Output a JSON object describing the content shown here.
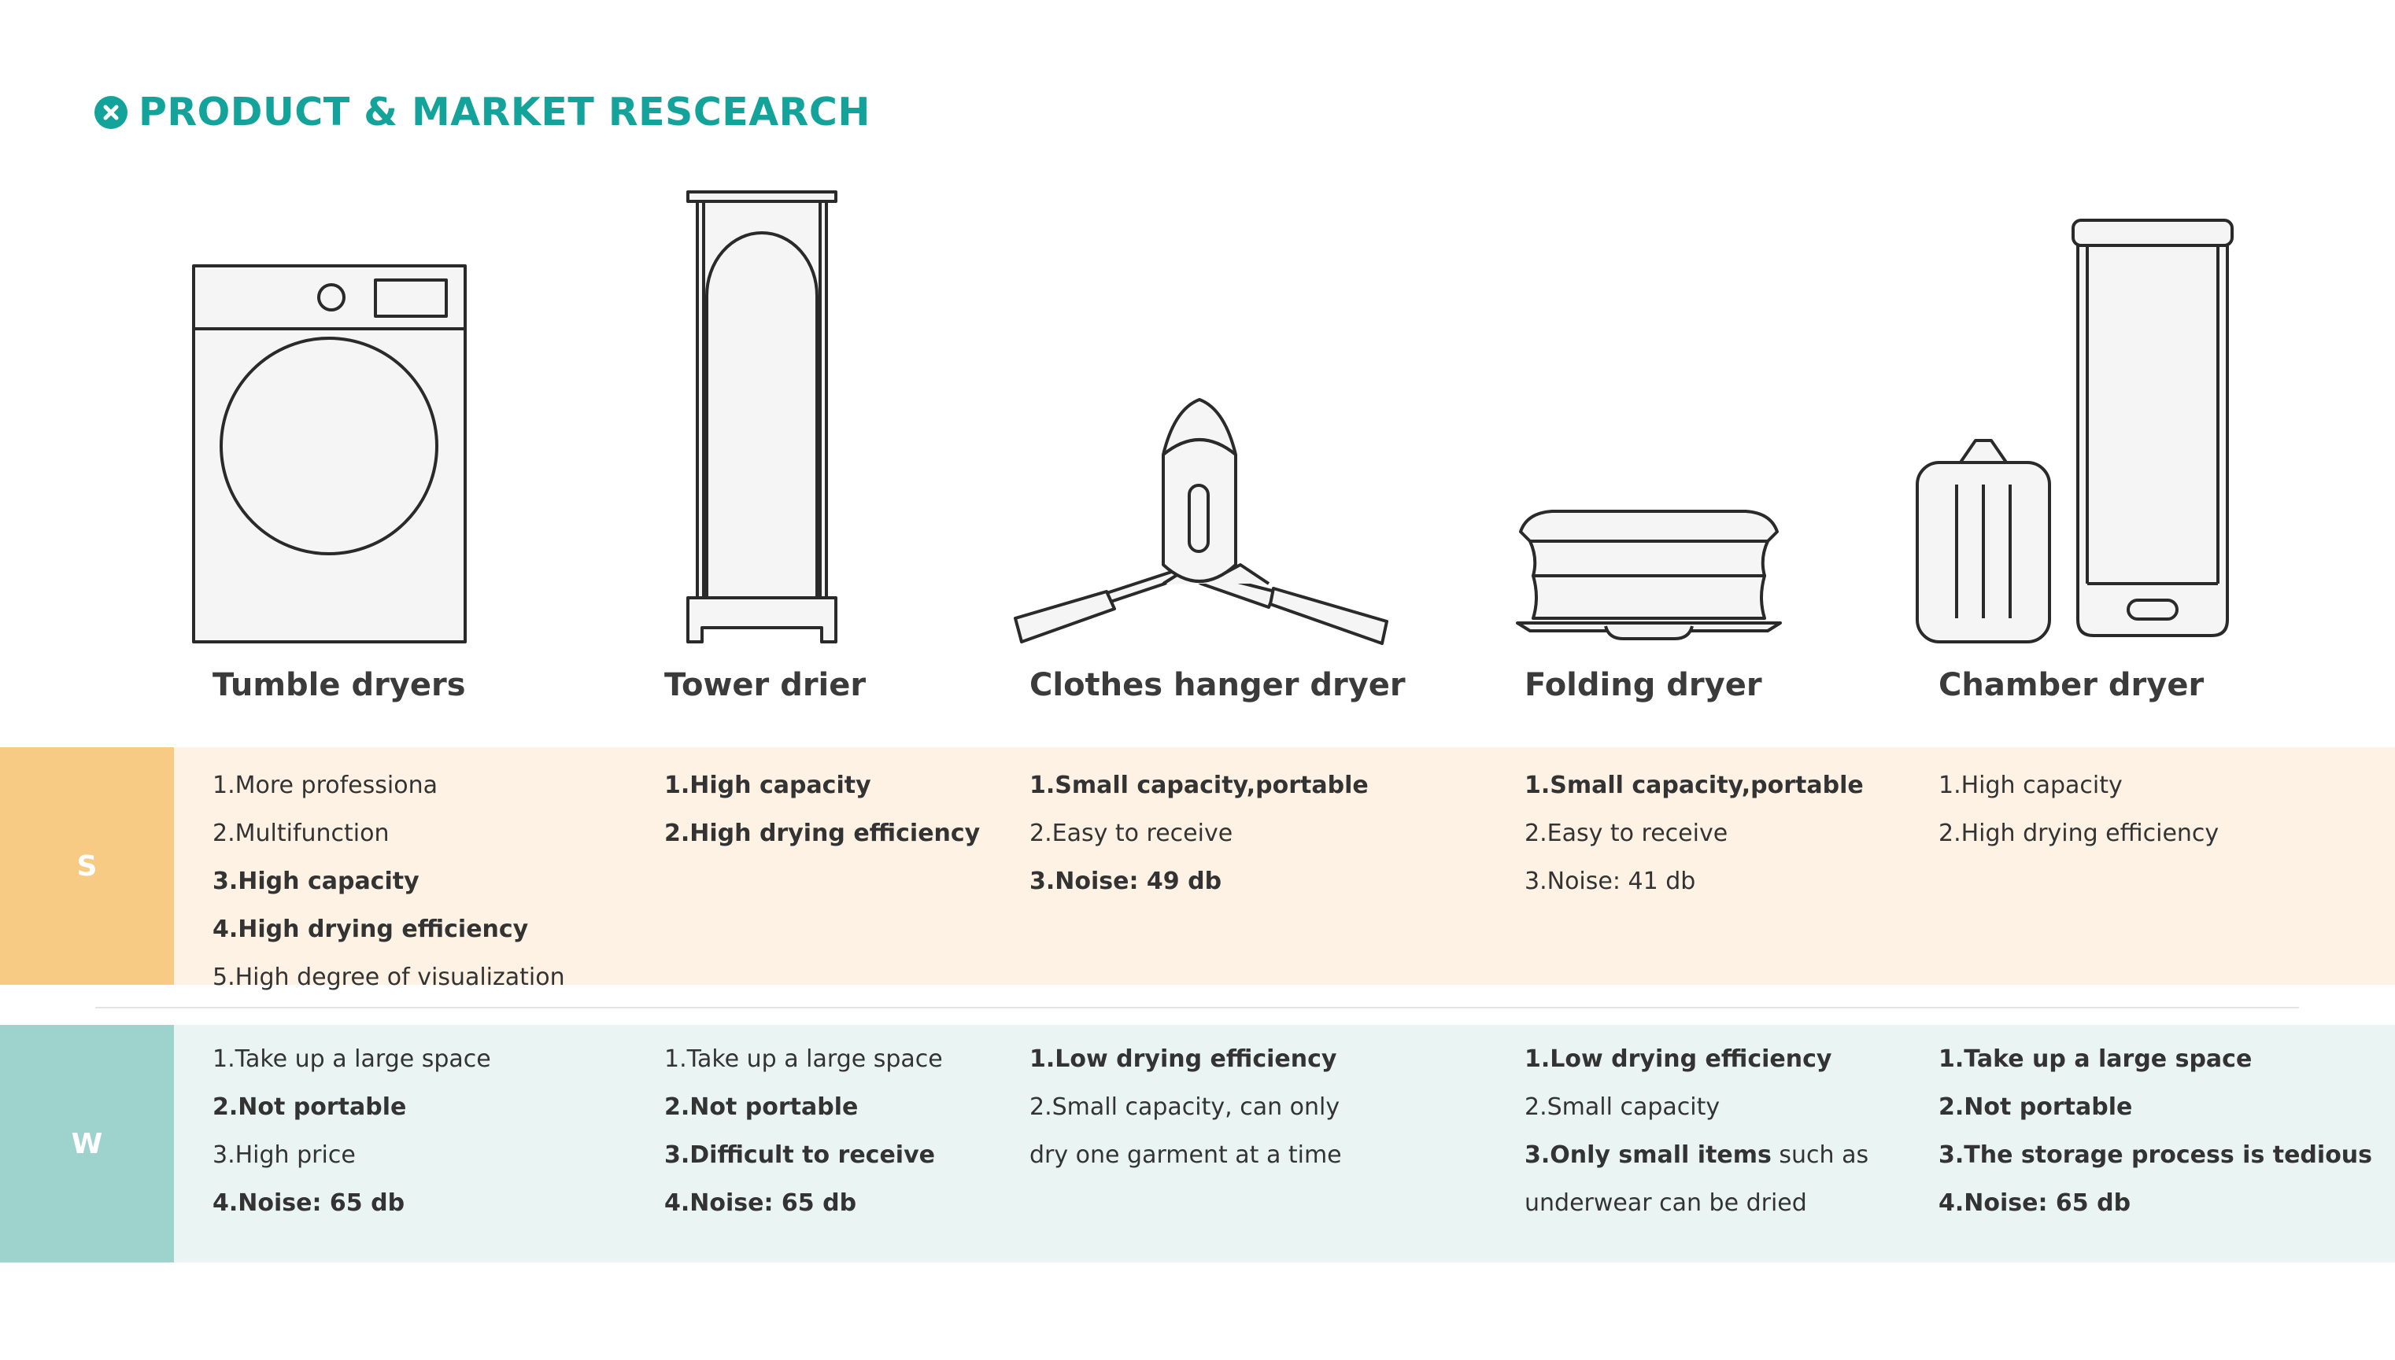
{
  "title": "PRODUCT & MARKET RESCEARCH",
  "colors": {
    "accent": "#14a39a",
    "s_label": "#f8cb85",
    "s_band": "#fdf2e3",
    "w_label": "#9ed2cd",
    "w_band": "#eaf4f3",
    "line_art": "#2a2a2a",
    "fill_art": "#f5f5f5"
  },
  "products": [
    {
      "name": "Tumble dryers",
      "icon": "tumble-dryer-icon"
    },
    {
      "name": "Tower drier",
      "icon": "tower-drier-icon"
    },
    {
      "name": "Clothes hanger dryer",
      "icon": "clothes-hanger-dryer-icon"
    },
    {
      "name": "Folding dryer",
      "icon": "folding-dryer-icon"
    },
    {
      "name": "Chamber dryer",
      "icon": "chamber-dryer-icon"
    }
  ],
  "strengths": {
    "label": "S",
    "columns": [
      [
        {
          "text": "1.More professiona",
          "bold": false
        },
        {
          "text": "2.Multifunction",
          "bold": false
        },
        {
          "text": "3.High capacity",
          "bold": true
        },
        {
          "text": "4.High drying efficiency",
          "bold": true
        },
        {
          "text": "5.High degree of visualization",
          "bold": false
        }
      ],
      [
        {
          "text": "1.High capacity",
          "bold": true
        },
        {
          "text": "2.High drying efficiency",
          "bold": true
        }
      ],
      [
        {
          "text": "1.Small capacity,portable",
          "bold": true
        },
        {
          "text": "2.Easy to receive",
          "bold": false
        },
        {
          "text": "3.Noise: 49 db",
          "bold": true
        }
      ],
      [
        {
          "text": "1.Small capacity,portable",
          "bold": true
        },
        {
          "text": "2.Easy to receive",
          "bold": false
        },
        {
          "text": "3.Noise: 41 db",
          "bold": false
        }
      ],
      [
        {
          "text": "1.High capacity",
          "bold": false
        },
        {
          "text": "2.High drying efficiency",
          "bold": false
        }
      ]
    ]
  },
  "weaknesses": {
    "label": "W",
    "columns": [
      [
        {
          "text": "1.Take up a large space",
          "bold": false
        },
        {
          "text": "2.Not portable",
          "bold": true
        },
        {
          "text": "3.High price",
          "bold": false
        },
        {
          "text": "4.Noise: 65 db",
          "bold": true
        }
      ],
      [
        {
          "text": "1.Take up a large space",
          "bold": false
        },
        {
          "text": "2.Not portable",
          "bold": true
        },
        {
          "text": "3.Difficult to receive",
          "bold": true
        },
        {
          "text": "4.Noise: 65 db",
          "bold": true
        }
      ],
      [
        {
          "text": "1.Low drying efficiency",
          "bold": true
        },
        {
          "text": "2.Small capacity, can only",
          "bold": false
        },
        {
          "text": "dry one garment at a time",
          "bold": false
        }
      ],
      [
        {
          "text": "1.Low drying efficiency",
          "bold": true
        },
        {
          "text": "2.Small capacity",
          "bold": false
        },
        {
          "segments": [
            {
              "text": "3.Only small items",
              "bold": true
            },
            {
              "text": " such as",
              "bold": false
            }
          ]
        },
        {
          "text": "underwear can be dried",
          "bold": false
        }
      ],
      [
        {
          "text": "1.Take up a large space",
          "bold": true
        },
        {
          "text": "2.Not portable",
          "bold": true
        },
        {
          "text": "3.The storage process is tedious",
          "bold": true
        },
        {
          "text": "4.Noise: 65 db",
          "bold": true
        }
      ]
    ]
  }
}
